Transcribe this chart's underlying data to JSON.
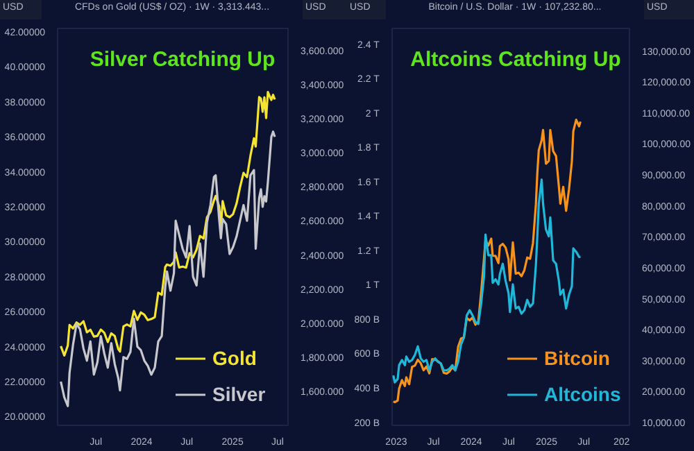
{
  "chart_data": [
    {
      "type": "line",
      "title": "Silver Catching Up",
      "subtitle": "CFDs on Gold (US$ / OZ) · 1W · 3,313.443...",
      "annotations": [
        "USD",
        "USD"
      ],
      "legend": "bottom right",
      "x": [
        "2023-02-10",
        "2023-02-24",
        "2023-03-10",
        "2023-03-17",
        "2023-03-31",
        "2023-04-14",
        "2023-04-28",
        "2023-05-12",
        "2023-05-26",
        "2023-06-09",
        "2023-06-23",
        "2023-07-07",
        "2023-07-21",
        "2023-08-04",
        "2023-08-18",
        "2023-09-01",
        "2023-09-15",
        "2023-09-29",
        "2023-10-06",
        "2023-10-20",
        "2023-11-03",
        "2023-11-17",
        "2023-12-01",
        "2023-12-15",
        "2023-12-29",
        "2024-01-12",
        "2024-01-26",
        "2024-02-09",
        "2024-02-23",
        "2024-03-08",
        "2024-03-22",
        "2024-04-05",
        "2024-04-12",
        "2024-04-26",
        "2024-05-10",
        "2024-05-17",
        "2024-05-31",
        "2024-06-14",
        "2024-06-28",
        "2024-07-12",
        "2024-07-26",
        "2024-08-09",
        "2024-08-23",
        "2024-09-06",
        "2024-09-20",
        "2024-10-04",
        "2024-10-18",
        "2024-10-25",
        "2024-11-08",
        "2024-11-15",
        "2024-11-22",
        "2024-12-06",
        "2024-12-20",
        "2025-01-03",
        "2025-01-17",
        "2025-01-31",
        "2025-02-14",
        "2025-02-28",
        "2025-03-14",
        "2025-03-28",
        "2025-04-04",
        "2025-04-18",
        "2025-04-25",
        "2025-05-02",
        "2025-05-09",
        "2025-05-16",
        "2025-05-23",
        "2025-06-06",
        "2025-06-13",
        "2025-06-20"
      ],
      "series": [
        {
          "name": "Gold",
          "color": "#f5e531",
          "axis": "y2",
          "values": [
            1865,
            1810,
            1868,
            1989,
            1969,
            2004,
            1990,
            2011,
            1946,
            1961,
            1921,
            1925,
            1962,
            1943,
            1889,
            1940,
            1924,
            1848,
            1833,
            1981,
            1992,
            1981,
            2072,
            2019,
            2063,
            2049,
            2018,
            2024,
            2035,
            2179,
            2166,
            2329,
            2344,
            2337,
            2360,
            2415,
            2327,
            2332,
            2326,
            2411,
            2386,
            2431,
            2512,
            2497,
            2622,
            2653,
            2721,
            2747,
            2685,
            2563,
            2716,
            2633,
            2622,
            2640,
            2702,
            2798,
            2882,
            2857,
            2984,
            3085,
            3037,
            3327,
            3319,
            3241,
            3325,
            3204,
            3357,
            3310,
            3340,
            3313
          ]
        },
        {
          "name": "Silver",
          "color": "#c8c8cc",
          "axis": "y",
          "values": [
            22.0,
            21.1,
            20.6,
            22.5,
            24.1,
            25.3,
            25.0,
            23.9,
            23.2,
            24.3,
            22.4,
            23.1,
            24.6,
            23.6,
            22.8,
            24.2,
            23.0,
            22.2,
            21.5,
            23.4,
            23.3,
            23.7,
            25.6,
            24.0,
            23.8,
            23.2,
            22.9,
            22.4,
            22.8,
            24.3,
            24.6,
            27.4,
            28.3,
            27.2,
            28.2,
            31.2,
            30.4,
            29.6,
            29.1,
            30.9,
            28.0,
            27.5,
            29.9,
            28.0,
            31.1,
            32.1,
            33.7,
            33.8,
            31.3,
            30.2,
            31.3,
            31.0,
            29.3,
            29.7,
            30.3,
            31.2,
            32.1,
            31.2,
            33.8,
            34.1,
            29.6,
            32.5,
            33.0,
            32.0,
            32.6,
            32.3,
            33.4,
            36.0,
            36.3,
            36.0
          ]
        }
      ],
      "xlim": [
        "2023-01-28",
        "2025-08-12"
      ],
      "xticks": [
        {
          "value": "2023-07-01",
          "label": "Jul"
        },
        {
          "value": "2024-01-01",
          "label": "2024"
        },
        {
          "value": "2024-07-01",
          "label": "Jul"
        },
        {
          "value": "2025-01-01",
          "label": "2025"
        },
        {
          "value": "2025-07-01",
          "label": "Jul"
        }
      ],
      "ylim": [
        19.5,
        42.2
      ],
      "yticks": [
        {
          "value": 20,
          "label": "20.00000"
        },
        {
          "value": 22,
          "label": "22.00000"
        },
        {
          "value": 24,
          "label": "24.00000"
        },
        {
          "value": 26,
          "label": "26.00000"
        },
        {
          "value": 28,
          "label": "28.00000"
        },
        {
          "value": 30,
          "label": "30.00000"
        },
        {
          "value": 32,
          "label": "32.00000"
        },
        {
          "value": 34,
          "label": "34.00000"
        },
        {
          "value": 36,
          "label": "36.00000"
        },
        {
          "value": 38,
          "label": "38.00000"
        },
        {
          "value": 40,
          "label": "40.00000"
        },
        {
          "value": 42,
          "label": "42.00000"
        }
      ],
      "y2lim": [
        1400,
        3730
      ],
      "y2ticks": [
        {
          "value": 1600,
          "label": "1,600.000"
        },
        {
          "value": 1800,
          "label": "1,800.000"
        },
        {
          "value": 2000,
          "label": "2,000.000"
        },
        {
          "value": 2200,
          "label": "2,200.000"
        },
        {
          "value": 2400,
          "label": "2,400.000"
        },
        {
          "value": 2600,
          "label": "2,600.000"
        },
        {
          "value": 2800,
          "label": "2,800.000"
        },
        {
          "value": 3000,
          "label": "3,000.000"
        },
        {
          "value": 3200,
          "label": "3,200.000"
        },
        {
          "value": 3400,
          "label": "3,400.000"
        },
        {
          "value": 3600,
          "label": "3,600.000"
        }
      ]
    },
    {
      "type": "line",
      "title": "Altcoins Catching Up",
      "subtitle": "Bitcoin / U.S. Dollar · 1W · 107,232.80...",
      "annotations": [
        "USD",
        "USD"
      ],
      "legend": "bottom right",
      "x": [
        "2022-12-18",
        "2022-12-25",
        "2023-01-08",
        "2023-01-15",
        "2023-01-29",
        "2023-02-12",
        "2023-02-19",
        "2023-03-05",
        "2023-03-19",
        "2023-04-02",
        "2023-04-16",
        "2023-04-30",
        "2023-05-14",
        "2023-05-28",
        "2023-06-11",
        "2023-06-25",
        "2023-07-09",
        "2023-07-23",
        "2023-08-06",
        "2023-08-20",
        "2023-09-03",
        "2023-09-17",
        "2023-10-01",
        "2023-10-15",
        "2023-10-29",
        "2023-11-12",
        "2023-11-26",
        "2023-12-10",
        "2023-12-24",
        "2024-01-07",
        "2024-01-21",
        "2024-02-04",
        "2024-02-18",
        "2024-03-03",
        "2024-03-10",
        "2024-03-24",
        "2024-04-07",
        "2024-04-14",
        "2024-04-28",
        "2024-05-12",
        "2024-05-19",
        "2024-06-02",
        "2024-06-16",
        "2024-06-30",
        "2024-07-07",
        "2024-07-21",
        "2024-08-04",
        "2024-08-18",
        "2024-09-01",
        "2024-09-15",
        "2024-09-29",
        "2024-10-13",
        "2024-10-27",
        "2024-11-10",
        "2024-11-17",
        "2024-11-24",
        "2024-12-08",
        "2024-12-15",
        "2024-12-29",
        "2025-01-12",
        "2025-01-19",
        "2025-02-02",
        "2025-02-16",
        "2025-03-02",
        "2025-03-09",
        "2025-03-23",
        "2025-04-06",
        "2025-04-20",
        "2025-05-04",
        "2025-05-11",
        "2025-05-25",
        "2025-06-08",
        "2025-06-15"
      ],
      "series": [
        {
          "name": "Bitcoin",
          "color": "#f7931a",
          "axis": "y2",
          "values": [
            16800,
            16600,
            17100,
            20900,
            23700,
            21800,
            24600,
            22400,
            28000,
            28400,
            30300,
            29200,
            26900,
            28100,
            25900,
            30500,
            30300,
            29800,
            29000,
            26100,
            25800,
            26500,
            27900,
            26900,
            34500,
            37100,
            37500,
            43800,
            43000,
            43900,
            41600,
            42600,
            52100,
            63100,
            68900,
            67200,
            69400,
            63900,
            63800,
            61500,
            67000,
            67700,
            66500,
            62800,
            55900,
            68200,
            58100,
            58400,
            57300,
            59200,
            63300,
            62900,
            68000,
            80400,
            90500,
            97900,
            101200,
            104500,
            93600,
            94500,
            104500,
            97700,
            96100,
            86100,
            80700,
            86100,
            78400,
            85300,
            94300,
            104100,
            107800,
            105700,
            107200
          ]
        },
        {
          "name": "Altcoins",
          "color": "#1fb8d8",
          "axis": "y",
          "values": [
            480000000000,
            440000000000,
            460000000000,
            540000000000,
            570000000000,
            540000000000,
            590000000000,
            560000000000,
            570000000000,
            600000000000,
            650000000000,
            580000000000,
            560000000000,
            570000000000,
            510000000000,
            560000000000,
            580000000000,
            560000000000,
            550000000000,
            510000000000,
            510000000000,
            520000000000,
            540000000000,
            510000000000,
            560000000000,
            660000000000,
            700000000000,
            830000000000,
            860000000000,
            830000000000,
            790000000000,
            780000000000,
            900000000000,
            1060000000000,
            1300000000000,
            1180000000000,
            1180000000000,
            1020000000000,
            1040000000000,
            1010000000000,
            1070000000000,
            1130000000000,
            1030000000000,
            960000000000,
            850000000000,
            1010000000000,
            870000000000,
            880000000000,
            840000000000,
            860000000000,
            920000000000,
            880000000000,
            900000000000,
            1120000000000,
            1290000000000,
            1480000000000,
            1620000000000,
            1480000000000,
            1330000000000,
            1290000000000,
            1400000000000,
            1150000000000,
            1130000000000,
            1030000000000,
            950000000000,
            980000000000,
            870000000000,
            950000000000,
            1000000000000,
            1220000000000,
            1200000000000,
            1170000000000,
            1170000000000
          ]
        }
      ],
      "xlim": [
        "2022-12-12",
        "2026-02-08"
      ],
      "xticks": [
        {
          "value": "2023-01-01",
          "label": "2023"
        },
        {
          "value": "2023-07-01",
          "label": "Jul"
        },
        {
          "value": "2024-01-01",
          "label": "2024"
        },
        {
          "value": "2024-07-01",
          "label": "Jul"
        },
        {
          "value": "2025-01-01",
          "label": "2025"
        },
        {
          "value": "2025-07-01",
          "label": "Jul"
        },
        {
          "value": "2026-01-01",
          "label": "202"
        }
      ],
      "ylim": [
        190000000000,
        2500000000000
      ],
      "yticks": [
        {
          "value": 200000000000,
          "label": "200 B"
        },
        {
          "value": 400000000000,
          "label": "400 B"
        },
        {
          "value": 600000000000,
          "label": "600 B"
        },
        {
          "value": 800000000000,
          "label": "800 B"
        },
        {
          "value": 1000000000000,
          "label": "1 T"
        },
        {
          "value": 1200000000000,
          "label": "1.2 T"
        },
        {
          "value": 1400000000000,
          "label": "1.4 T"
        },
        {
          "value": 1600000000000,
          "label": "1.6 T"
        },
        {
          "value": 1800000000000,
          "label": "1.8 T"
        },
        {
          "value": 2000000000000,
          "label": "2 T"
        },
        {
          "value": 2200000000000,
          "label": "2.2 T"
        },
        {
          "value": 2400000000000,
          "label": "2.4 T"
        }
      ],
      "y2lim": [
        9100,
        137300
      ],
      "y2ticks": [
        {
          "value": 10000,
          "label": "10,000.00"
        },
        {
          "value": 20000,
          "label": "20,000.00"
        },
        {
          "value": 30000,
          "label": "30,000.00"
        },
        {
          "value": 40000,
          "label": "40,000.00"
        },
        {
          "value": 50000,
          "label": "50,000.00"
        },
        {
          "value": 60000,
          "label": "60,000.00"
        },
        {
          "value": 70000,
          "label": "70,000.00"
        },
        {
          "value": 80000,
          "label": "80,000.00"
        },
        {
          "value": 90000,
          "label": "90,000.00"
        },
        {
          "value": 100000,
          "label": "100,000.00"
        },
        {
          "value": 110000,
          "label": "110,000.00"
        },
        {
          "value": 120000,
          "label": "120,000.00"
        },
        {
          "value": 130000,
          "label": "130,000.00"
        }
      ]
    }
  ]
}
